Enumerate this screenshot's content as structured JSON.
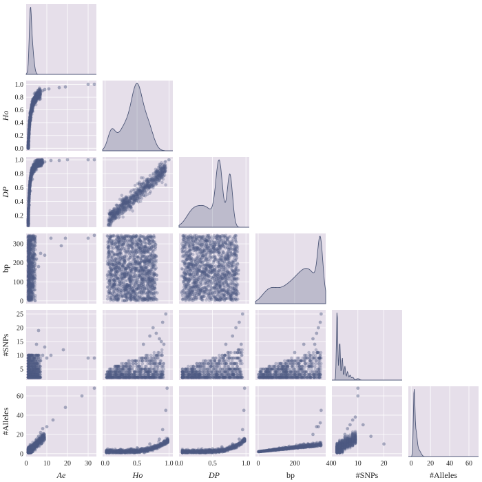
{
  "figure": {
    "type": "pairplot",
    "variables": [
      {
        "key": "Ae",
        "label": "Ae",
        "italic": true
      },
      {
        "key": "Ho",
        "label": "Ho",
        "italic": true
      },
      {
        "key": "DP",
        "label": "DP",
        "italic": true
      },
      {
        "key": "bp",
        "label": "bp",
        "italic": false
      },
      {
        "key": "SNPs",
        "label": "#SNPs",
        "italic": false
      },
      {
        "key": "Alleles",
        "label": "#Alleles",
        "italic": false
      }
    ],
    "colors": {
      "background": "#e6dfea",
      "points": "#4e5a82",
      "kde_fill": "#6f7896",
      "kde_line": "#4c5677"
    }
  },
  "chart_data": {
    "type": "scatter",
    "layout": "lower-triangle pairplot with KDE diagonal",
    "grid": true,
    "axes": {
      "Ae": {
        "range": [
          0,
          34
        ],
        "ticks": [
          0,
          10,
          20,
          30
        ],
        "tick_labels": [
          "0",
          "10",
          "20",
          "30"
        ]
      },
      "Ho": {
        "range": [
          -0.04,
          1.06
        ],
        "ticks": [
          0.0,
          0.5,
          1.0
        ],
        "tick_labels": [
          "0.0",
          "0.5",
          "1.0"
        ],
        "row_ticks": [
          0.0,
          0.2,
          0.4,
          0.6,
          0.8,
          1.0
        ],
        "row_tick_labels": [
          "0.0",
          "0.2",
          "0.4",
          "0.6",
          "0.8",
          "1.0"
        ]
      },
      "DP": {
        "range": [
          0.0,
          1.05
        ],
        "ticks": [
          0.0,
          0.5,
          1.0
        ],
        "tick_labels": [
          "0.0",
          "0.5",
          "1.0"
        ],
        "row_range": [
          0.03,
          1.04
        ],
        "row_ticks": [
          0.2,
          0.4,
          0.6,
          0.8,
          1.0
        ],
        "row_tick_labels": [
          "0.2",
          "0.4",
          "0.6",
          "0.8",
          "1.0"
        ]
      },
      "bp": {
        "range": [
          -15,
          370
        ],
        "ticks": [
          0,
          200,
          400
        ],
        "tick_labels": [
          "0",
          "200",
          "400"
        ],
        "row_range": [
          -15,
          355
        ],
        "row_ticks": [
          0,
          100,
          200,
          300
        ],
        "row_tick_labels": [
          "0",
          "100",
          "200",
          "300"
        ]
      },
      "SNPs": {
        "range": [
          0,
          27
        ],
        "ticks": [
          10,
          20
        ],
        "tick_labels": [
          "10",
          "20"
        ],
        "row_range": [
          1,
          26.5
        ],
        "row_ticks": [
          5,
          10,
          15,
          20,
          25
        ],
        "row_tick_labels": [
          "5",
          "10",
          "15",
          "20",
          "25"
        ]
      },
      "Alleles": {
        "range": [
          -3,
          70
        ],
        "ticks": [
          0,
          20,
          40,
          60
        ],
        "tick_labels": [
          "0",
          "20",
          "40",
          "60"
        ],
        "row_ticks": [
          0,
          20,
          40,
          60
        ],
        "row_tick_labels": [
          "0",
          "20",
          "40",
          "60"
        ]
      }
    },
    "diagonal_kde": {
      "Ae": {
        "peaks": [
          [
            2.0,
            1.0
          ],
          [
            2.7,
            0.72
          ]
        ],
        "width": [
          0.5,
          0.9
        ]
      },
      "Ho": {
        "peaks": [
          [
            0.1,
            0.3
          ],
          [
            0.3,
            0.35
          ],
          [
            0.5,
            1.0
          ],
          [
            0.68,
            0.35
          ]
        ],
        "width": [
          0.06,
          0.1,
          0.09,
          0.08
        ]
      },
      "DP": {
        "peaks": [
          [
            0.2,
            0.22
          ],
          [
            0.4,
            0.3
          ],
          [
            0.6,
            1.0
          ],
          [
            0.76,
            0.84
          ]
        ],
        "width": [
          0.1,
          0.12,
          0.05,
          0.04
        ]
      },
      "bp": {
        "peaks": [
          [
            60,
            0.22
          ],
          [
            180,
            0.35
          ],
          [
            280,
            0.55
          ],
          [
            340,
            1.0
          ]
        ],
        "width": [
          40,
          70,
          55,
          14
        ]
      },
      "SNPs": {
        "peaks": [
          [
            2,
            1.0
          ],
          [
            3,
            0.55
          ],
          [
            4,
            0.32
          ],
          [
            5,
            0.2
          ],
          [
            6,
            0.12
          ],
          [
            7,
            0.07
          ],
          [
            8,
            0.04
          ],
          [
            10,
            0.02
          ]
        ],
        "width": [
          0.25,
          0.25,
          0.25,
          0.25,
          0.3,
          0.3,
          0.4,
          0.6
        ]
      },
      "Alleles": {
        "peaks": [
          [
            3,
            1.0
          ],
          [
            5,
            0.35
          ],
          [
            8,
            0.1
          ]
        ],
        "width": [
          0.8,
          1.2,
          2
        ]
      }
    },
    "sample_points": {
      "Ae_Ho": [
        [
          1.2,
          0.05
        ],
        [
          1.5,
          0.3
        ],
        [
          2,
          0.5
        ],
        [
          2.5,
          0.6
        ],
        [
          3,
          0.7
        ],
        [
          4,
          0.76
        ],
        [
          5,
          0.8
        ],
        [
          6,
          0.85
        ],
        [
          7,
          0.88
        ],
        [
          8,
          0.9
        ],
        [
          9,
          0.92
        ],
        [
          11,
          0.93
        ],
        [
          16,
          0.95
        ],
        [
          19,
          0.96
        ],
        [
          30,
          1.0
        ],
        [
          33,
          1.0
        ]
      ],
      "Ae_DP": [
        [
          1.2,
          0.08
        ],
        [
          1.5,
          0.35
        ],
        [
          2,
          0.55
        ],
        [
          3,
          0.72
        ],
        [
          4,
          0.83
        ],
        [
          5,
          0.9
        ],
        [
          7,
          0.95
        ],
        [
          9,
          0.97
        ],
        [
          12,
          0.99
        ],
        [
          16,
          0.99
        ],
        [
          20,
          1.0
        ],
        [
          30,
          1.0
        ],
        [
          33,
          1.0
        ]
      ],
      "Ae_bp": [
        [
          2,
          340
        ],
        [
          3,
          300
        ],
        [
          5,
          220
        ],
        [
          6,
          180
        ],
        [
          7,
          250
        ],
        [
          9,
          240
        ],
        [
          12,
          330
        ],
        [
          17,
          290
        ],
        [
          19,
          330
        ],
        [
          30,
          330
        ],
        [
          33,
          345
        ]
      ],
      "Ae_SNPs": [
        [
          2,
          2
        ],
        [
          3,
          5
        ],
        [
          4,
          9
        ],
        [
          5,
          14
        ],
        [
          6,
          19
        ],
        [
          7,
          8
        ],
        [
          8,
          10
        ],
        [
          9,
          13
        ],
        [
          10,
          9
        ],
        [
          12,
          10
        ],
        [
          18,
          12
        ],
        [
          30,
          9
        ],
        [
          33,
          9
        ]
      ],
      "Ae_Alleles": [
        [
          2,
          3
        ],
        [
          3,
          6
        ],
        [
          4,
          10
        ],
        [
          5,
          15
        ],
        [
          6,
          18
        ],
        [
          7,
          22
        ],
        [
          8,
          26
        ],
        [
          10,
          28
        ],
        [
          13,
          35
        ],
        [
          19,
          48
        ],
        [
          27,
          60
        ],
        [
          33,
          68
        ]
      ],
      "Ho_DP": [
        [
          0.05,
          0.06
        ],
        [
          0.2,
          0.25
        ],
        [
          0.4,
          0.45
        ],
        [
          0.6,
          0.65
        ],
        [
          0.8,
          0.82
        ],
        [
          0.9,
          0.93
        ],
        [
          1.0,
          1.0
        ]
      ],
      "Ho_SNPs": [
        [
          0.6,
          14
        ],
        [
          0.7,
          17
        ],
        [
          0.75,
          20
        ],
        [
          0.8,
          18
        ],
        [
          0.85,
          16
        ],
        [
          0.9,
          22
        ],
        [
          0.95,
          25
        ],
        [
          0.92,
          14
        ],
        [
          0.88,
          15
        ]
      ],
      "Ho_Alleles": [
        [
          0.2,
          3
        ],
        [
          0.5,
          6
        ],
        [
          0.7,
          10
        ],
        [
          0.85,
          15
        ],
        [
          0.9,
          25
        ],
        [
          0.95,
          45
        ],
        [
          0.97,
          68
        ]
      ],
      "DP_SNPs": [
        [
          0.7,
          14
        ],
        [
          0.8,
          17
        ],
        [
          0.85,
          20
        ],
        [
          0.9,
          22
        ],
        [
          0.95,
          25
        ],
        [
          0.93,
          14
        ]
      ],
      "DP_Alleles": [
        [
          0.2,
          3
        ],
        [
          0.5,
          5
        ],
        [
          0.8,
          10
        ],
        [
          0.9,
          15
        ],
        [
          0.95,
          25
        ],
        [
          0.97,
          45
        ],
        [
          0.98,
          68
        ]
      ],
      "bp_SNPs": [
        [
          200,
          11
        ],
        [
          250,
          14
        ],
        [
          300,
          16
        ],
        [
          320,
          18
        ],
        [
          330,
          20
        ],
        [
          340,
          22
        ],
        [
          345,
          25
        ],
        [
          310,
          14
        ]
      ],
      "bp_Alleles": [
        [
          50,
          3
        ],
        [
          150,
          6
        ],
        [
          250,
          10
        ],
        [
          300,
          20
        ],
        [
          330,
          28
        ],
        [
          340,
          32
        ],
        [
          345,
          45
        ],
        [
          320,
          28
        ]
      ],
      "SNPs_Alleles": [
        [
          2,
          3
        ],
        [
          3,
          8
        ],
        [
          4,
          14
        ],
        [
          5,
          20
        ],
        [
          6,
          26
        ],
        [
          7,
          30
        ],
        [
          8,
          35
        ],
        [
          9,
          38
        ],
        [
          10,
          60
        ],
        [
          10,
          68
        ],
        [
          12,
          30
        ],
        [
          15,
          18
        ],
        [
          20,
          10
        ]
      ]
    }
  }
}
